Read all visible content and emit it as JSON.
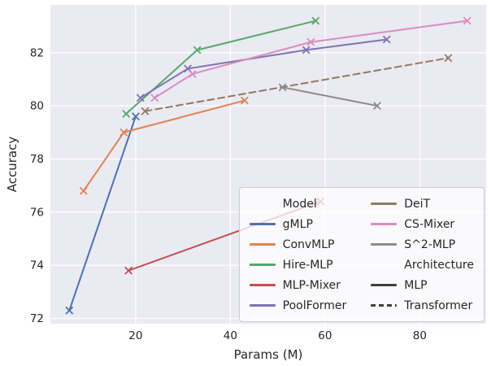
{
  "figure": {
    "plot_bg": "#eaeaf2",
    "grid_color": "#ffffff",
    "tick_color": "#262626",
    "axis_text_color": "#262626"
  },
  "chart_data": {
    "type": "line",
    "title": "",
    "xlabel": "Params (M)",
    "ylabel": "Accuracy",
    "xlim": [
      2,
      94
    ],
    "ylim": [
      71.8,
      83.8
    ],
    "xticks": [
      20,
      40,
      60,
      80
    ],
    "yticks": [
      72,
      74,
      76,
      78,
      80,
      82
    ],
    "grid": true,
    "marker": "x",
    "legend_position": "lower right",
    "series": [
      {
        "name": "gMLP",
        "architecture": "MLP",
        "color": "#4C72B0",
        "dashed": false,
        "points": [
          [
            6,
            72.3
          ],
          [
            20,
            79.6
          ]
        ]
      },
      {
        "name": "ConvMLP",
        "architecture": "MLP",
        "color": "#DD8452",
        "dashed": false,
        "points": [
          [
            9,
            76.8
          ],
          [
            17.5,
            79.0
          ],
          [
            43,
            80.2
          ]
        ]
      },
      {
        "name": "Hire-MLP",
        "architecture": "MLP",
        "color": "#55A868",
        "dashed": false,
        "points": [
          [
            18,
            79.7
          ],
          [
            33,
            82.1
          ],
          [
            58,
            83.2
          ]
        ]
      },
      {
        "name": "MLP-Mixer",
        "architecture": "MLP",
        "color": "#C44E52",
        "dashed": false,
        "points": [
          [
            18.5,
            73.8
          ],
          [
            59,
            76.4
          ]
        ]
      },
      {
        "name": "PoolFormer",
        "architecture": "MLP",
        "color": "#8172B3",
        "dashed": false,
        "points": [
          [
            21,
            80.3
          ],
          [
            31,
            81.4
          ],
          [
            56,
            82.1
          ],
          [
            73,
            82.5
          ]
        ]
      },
      {
        "name": "DeiT",
        "architecture": "Transformer",
        "color": "#937860",
        "dashed": true,
        "points": [
          [
            22,
            79.8
          ],
          [
            86,
            81.8
          ]
        ]
      },
      {
        "name": "CS-Mixer",
        "architecture": "MLP",
        "color": "#DA8BC3",
        "dashed": false,
        "points": [
          [
            24,
            80.3
          ],
          [
            32,
            81.2
          ],
          [
            57,
            82.4
          ],
          [
            90,
            83.2
          ]
        ]
      },
      {
        "name": "S^2-MLP",
        "architecture": "MLP",
        "color": "#8C8C8C",
        "dashed": false,
        "points": [
          [
            51,
            80.7
          ],
          [
            71,
            80.0
          ]
        ]
      }
    ],
    "legend": {
      "columns": [
        {
          "items": [
            {
              "kind": "header",
              "label": "Model"
            },
            {
              "kind": "line",
              "label": "gMLP",
              "color": "#4C72B0",
              "dashed": false
            },
            {
              "kind": "line",
              "label": "ConvMLP",
              "color": "#DD8452",
              "dashed": false
            },
            {
              "kind": "line",
              "label": "Hire-MLP",
              "color": "#55A868",
              "dashed": false
            },
            {
              "kind": "line",
              "label": "MLP-Mixer",
              "color": "#C44E52",
              "dashed": false
            },
            {
              "kind": "line",
              "label": "PoolFormer",
              "color": "#8172B3",
              "dashed": false
            }
          ]
        },
        {
          "items": [
            {
              "kind": "line",
              "label": "DeiT",
              "color": "#937860",
              "dashed": false
            },
            {
              "kind": "line",
              "label": "CS-Mixer",
              "color": "#DA8BC3",
              "dashed": false
            },
            {
              "kind": "line",
              "label": "S^2-MLP",
              "color": "#8C8C8C",
              "dashed": false
            },
            {
              "kind": "header",
              "label": "Architecture"
            },
            {
              "kind": "line",
              "label": "MLP",
              "color": "#404040",
              "dashed": false
            },
            {
              "kind": "line",
              "label": "Transformer",
              "color": "#404040",
              "dashed": true
            }
          ]
        }
      ]
    }
  }
}
